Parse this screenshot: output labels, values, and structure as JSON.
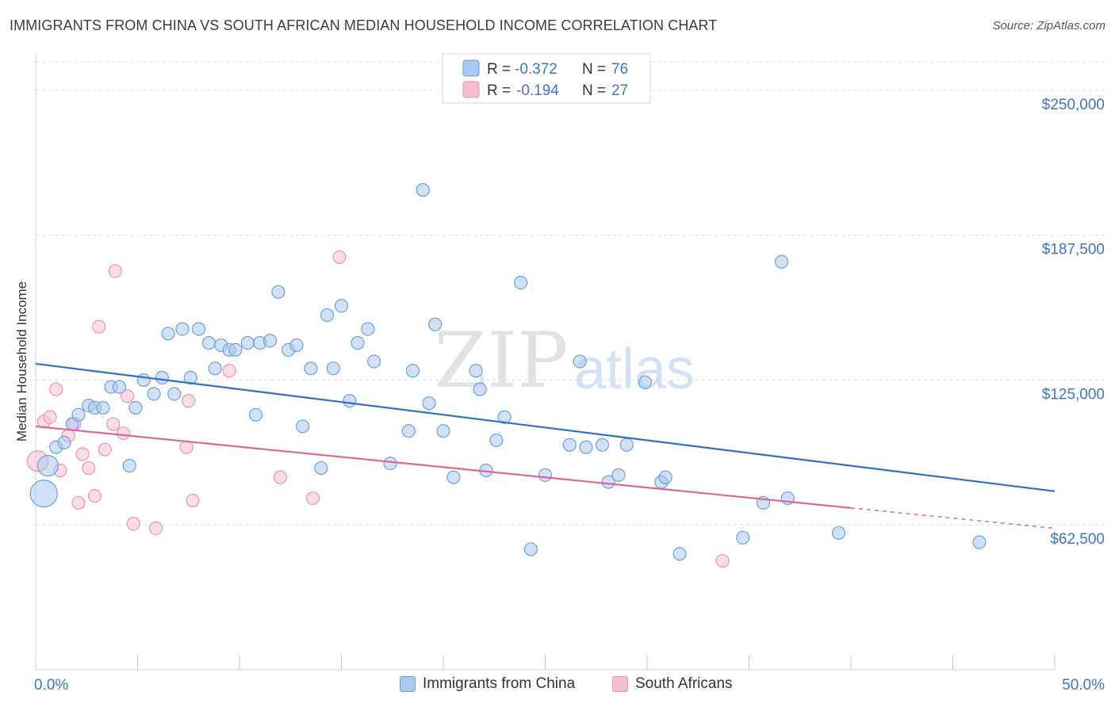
{
  "header": {
    "title": "IMMIGRANTS FROM CHINA VS SOUTH AFRICAN MEDIAN HOUSEHOLD INCOME CORRELATION CHART",
    "source": "Source: ZipAtlas.com"
  },
  "watermark": {
    "zip": "ZIP",
    "atlas": "atlas"
  },
  "colors": {
    "blue_fill": "#a9c8ef",
    "blue_stroke": "#6f9fdc",
    "blue_line": "#2f6fcc",
    "pink_fill": "#f6bfd1",
    "pink_stroke": "#e994b0",
    "pink_line": "#e06690",
    "axis_text": "#3d76c8",
    "grid": "#dedede"
  },
  "chart_data": {
    "type": "scatter",
    "title": "IMMIGRANTS FROM CHINA VS SOUTH AFRICAN MEDIAN HOUSEHOLD INCOME CORRELATION CHART",
    "xlabel": "",
    "ylabel": "Median Household Income",
    "xlim": [
      0,
      50
    ],
    "ylim": [
      0,
      265000
    ],
    "x_tick_labels": [
      "0.0%",
      "50.0%"
    ],
    "y_ticks": [
      62500,
      125000,
      187500,
      250000
    ],
    "y_tick_labels": [
      "$62,500",
      "$125,000",
      "$187,500",
      "$250,000"
    ],
    "grid": true,
    "legend": {
      "position": "top-center",
      "entries": [
        {
          "r_label": "R =",
          "r_value": "-0.372",
          "n_label": "N =",
          "n_value": "76"
        },
        {
          "r_label": "R =",
          "r_value": "-0.194",
          "n_label": "N =",
          "n_value": "27"
        }
      ]
    },
    "series": [
      {
        "name": "Immigrants from China",
        "color": "#a9c8ef",
        "trend": {
          "x0": 0,
          "y0": 132000,
          "x1": 50,
          "y1": 77000,
          "solid_until": 50
        },
        "points": [
          {
            "x": 0.4,
            "y": 76000,
            "big": 2
          },
          {
            "x": 0.6,
            "y": 88000,
            "big": 1
          },
          {
            "x": 1.0,
            "y": 96000
          },
          {
            "x": 1.4,
            "y": 98000
          },
          {
            "x": 1.8,
            "y": 106000
          },
          {
            "x": 2.1,
            "y": 110000
          },
          {
            "x": 2.6,
            "y": 114000
          },
          {
            "x": 2.9,
            "y": 113000
          },
          {
            "x": 3.3,
            "y": 113000
          },
          {
            "x": 3.7,
            "y": 122000
          },
          {
            "x": 4.1,
            "y": 122000
          },
          {
            "x": 4.6,
            "y": 88000
          },
          {
            "x": 4.9,
            "y": 113000
          },
          {
            "x": 5.3,
            "y": 125000
          },
          {
            "x": 5.8,
            "y": 119000
          },
          {
            "x": 6.2,
            "y": 126000
          },
          {
            "x": 6.5,
            "y": 145000
          },
          {
            "x": 6.8,
            "y": 119000
          },
          {
            "x": 7.2,
            "y": 147000
          },
          {
            "x": 7.6,
            "y": 126000
          },
          {
            "x": 8.0,
            "y": 147000
          },
          {
            "x": 8.5,
            "y": 141000
          },
          {
            "x": 8.8,
            "y": 130000
          },
          {
            "x": 9.1,
            "y": 140000
          },
          {
            "x": 9.5,
            "y": 138000
          },
          {
            "x": 9.8,
            "y": 138000
          },
          {
            "x": 10.4,
            "y": 141000
          },
          {
            "x": 10.8,
            "y": 110000
          },
          {
            "x": 11.0,
            "y": 141000
          },
          {
            "x": 11.5,
            "y": 142000
          },
          {
            "x": 11.9,
            "y": 163000
          },
          {
            "x": 12.4,
            "y": 138000
          },
          {
            "x": 12.8,
            "y": 140000
          },
          {
            "x": 13.1,
            "y": 105000
          },
          {
            "x": 13.5,
            "y": 130000
          },
          {
            "x": 14.0,
            "y": 87000
          },
          {
            "x": 14.3,
            "y": 153000
          },
          {
            "x": 14.6,
            "y": 130000
          },
          {
            "x": 15.0,
            "y": 157000
          },
          {
            "x": 15.4,
            "y": 116000
          },
          {
            "x": 15.8,
            "y": 141000
          },
          {
            "x": 16.3,
            "y": 147000
          },
          {
            "x": 16.6,
            "y": 133000
          },
          {
            "x": 17.4,
            "y": 89000
          },
          {
            "x": 18.3,
            "y": 103000
          },
          {
            "x": 18.5,
            "y": 129000
          },
          {
            "x": 19.0,
            "y": 207000
          },
          {
            "x": 19.3,
            "y": 115000
          },
          {
            "x": 19.6,
            "y": 149000
          },
          {
            "x": 20.0,
            "y": 103000
          },
          {
            "x": 20.5,
            "y": 83000
          },
          {
            "x": 21.6,
            "y": 129000
          },
          {
            "x": 21.8,
            "y": 121000
          },
          {
            "x": 22.1,
            "y": 86000
          },
          {
            "x": 22.6,
            "y": 99000
          },
          {
            "x": 23.0,
            "y": 109000
          },
          {
            "x": 23.8,
            "y": 167000
          },
          {
            "x": 24.3,
            "y": 52000
          },
          {
            "x": 25.0,
            "y": 84000
          },
          {
            "x": 26.2,
            "y": 97000
          },
          {
            "x": 26.7,
            "y": 133000
          },
          {
            "x": 27.0,
            "y": 96000
          },
          {
            "x": 27.8,
            "y": 97000
          },
          {
            "x": 28.1,
            "y": 81000
          },
          {
            "x": 28.6,
            "y": 84000
          },
          {
            "x": 29.0,
            "y": 97000
          },
          {
            "x": 29.9,
            "y": 124000
          },
          {
            "x": 30.7,
            "y": 81000
          },
          {
            "x": 30.9,
            "y": 83000
          },
          {
            "x": 31.6,
            "y": 50000
          },
          {
            "x": 34.7,
            "y": 57000
          },
          {
            "x": 35.7,
            "y": 72000
          },
          {
            "x": 36.6,
            "y": 176000
          },
          {
            "x": 36.9,
            "y": 74000
          },
          {
            "x": 39.4,
            "y": 59000
          },
          {
            "x": 46.3,
            "y": 55000
          }
        ]
      },
      {
        "name": "South Africans",
        "color": "#f6bfd1",
        "trend": {
          "x0": 0,
          "y0": 105000,
          "x1": 50,
          "y1": 61000,
          "solid_until": 40
        },
        "points": [
          {
            "x": 0.1,
            "y": 90000,
            "big": 1
          },
          {
            "x": 0.4,
            "y": 107000
          },
          {
            "x": 0.7,
            "y": 109000
          },
          {
            "x": 1.0,
            "y": 121000
          },
          {
            "x": 1.2,
            "y": 86000
          },
          {
            "x": 1.6,
            "y": 101000
          },
          {
            "x": 1.9,
            "y": 106000
          },
          {
            "x": 2.1,
            "y": 72000
          },
          {
            "x": 2.3,
            "y": 93000
          },
          {
            "x": 2.6,
            "y": 87000
          },
          {
            "x": 2.9,
            "y": 75000
          },
          {
            "x": 3.1,
            "y": 148000
          },
          {
            "x": 3.4,
            "y": 95000
          },
          {
            "x": 3.8,
            "y": 106000
          },
          {
            "x": 3.9,
            "y": 172000
          },
          {
            "x": 4.3,
            "y": 102000
          },
          {
            "x": 4.5,
            "y": 118000
          },
          {
            "x": 4.8,
            "y": 63000
          },
          {
            "x": 5.9,
            "y": 61000
          },
          {
            "x": 7.4,
            "y": 96000
          },
          {
            "x": 7.5,
            "y": 116000
          },
          {
            "x": 7.7,
            "y": 73000
          },
          {
            "x": 9.5,
            "y": 129000
          },
          {
            "x": 12.0,
            "y": 83000
          },
          {
            "x": 13.6,
            "y": 74000
          },
          {
            "x": 14.9,
            "y": 178000
          },
          {
            "x": 33.7,
            "y": 47000
          }
        ]
      }
    ]
  }
}
